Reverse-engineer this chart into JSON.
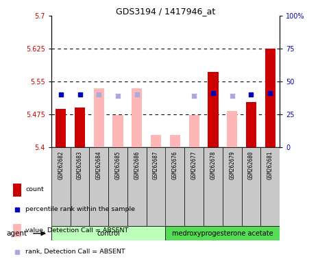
{
  "title": "GDS3194 / 1417946_at",
  "samples": [
    "GSM262682",
    "GSM262683",
    "GSM262684",
    "GSM262685",
    "GSM262686",
    "GSM262687",
    "GSM262676",
    "GSM262677",
    "GSM262678",
    "GSM262679",
    "GSM262680",
    "GSM262681"
  ],
  "count_values": [
    5.488,
    5.49,
    null,
    null,
    null,
    null,
    null,
    null,
    5.572,
    null,
    5.503,
    5.625
  ],
  "rank_pct_present": [
    40,
    40,
    null,
    null,
    null,
    null,
    null,
    null,
    41,
    null,
    40,
    41
  ],
  "absent_values": [
    null,
    null,
    5.535,
    5.473,
    5.535,
    5.428,
    5.428,
    5.473,
    null,
    5.483,
    null,
    null
  ],
  "absent_rank_pct": [
    null,
    null,
    40,
    39,
    40,
    null,
    null,
    39,
    null,
    39,
    null,
    null
  ],
  "ylim_left": [
    5.4,
    5.7
  ],
  "ylim_right": [
    0,
    100
  ],
  "yticks_left": [
    5.4,
    5.475,
    5.55,
    5.625,
    5.7
  ],
  "yticks_right": [
    0,
    25,
    50,
    75,
    100
  ],
  "ytick_labels_left": [
    "5.4",
    "5.475",
    "5.55",
    "5.625",
    "5.7"
  ],
  "ytick_labels_right": [
    "0",
    "25",
    "50",
    "75",
    "100%"
  ],
  "hlines": [
    5.625,
    5.55,
    5.475
  ],
  "bar_color_present": "#CC0000",
  "bar_color_absent": "#FFB6B6",
  "dot_color_present": "#0000BB",
  "dot_color_absent": "#AAAADD",
  "ctrl_color": "#BBFFBB",
  "trt_color": "#55DD55",
  "gray_color": "#C8C8C8",
  "n_ctrl": 6,
  "n_trt": 6,
  "control_label": "control",
  "treatment_label": "medroxyprogesterone acetate",
  "agent_label": "agent",
  "legend": [
    {
      "label": "count",
      "color": "#CC0000",
      "type": "rect"
    },
    {
      "label": "percentile rank within the sample",
      "color": "#0000BB",
      "type": "square"
    },
    {
      "label": "value, Detection Call = ABSENT",
      "color": "#FFB6B6",
      "type": "rect"
    },
    {
      "label": "rank, Detection Call = ABSENT",
      "color": "#AAAADD",
      "type": "square"
    }
  ]
}
